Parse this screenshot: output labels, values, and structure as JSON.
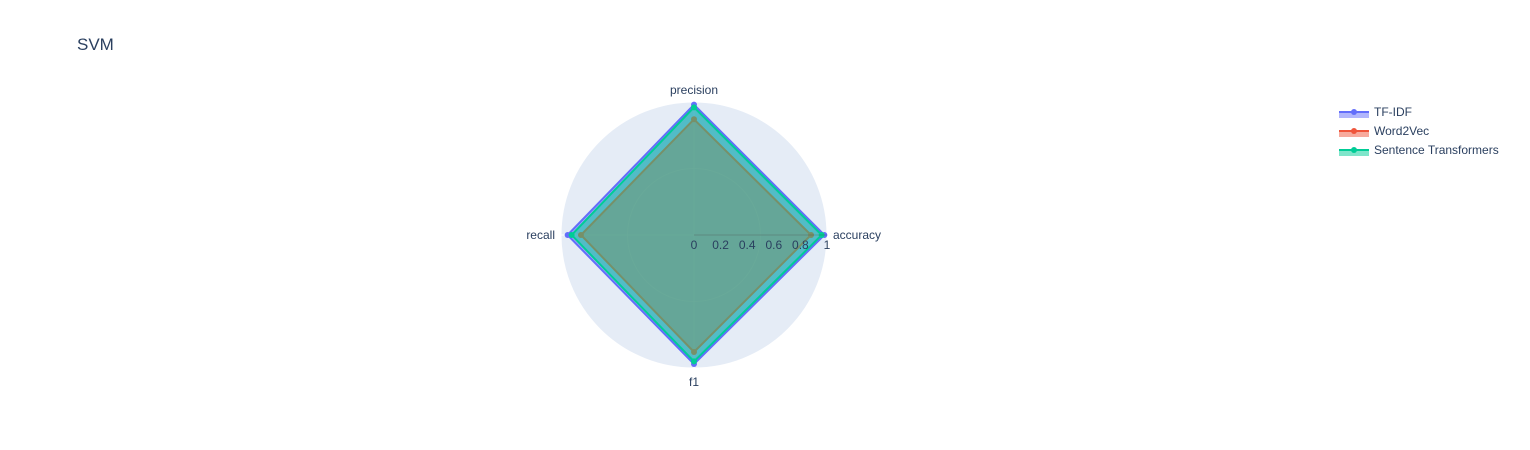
{
  "chart_data": {
    "type": "radar",
    "title": "SVM",
    "axes": [
      "accuracy",
      "precision",
      "recall",
      "f1"
    ],
    "radial_range": [
      0,
      1
    ],
    "radial_ticks": [
      "0",
      "0.2",
      "0.4",
      "0.6",
      "0.8",
      "1"
    ],
    "radial_tick_values": [
      0,
      0.2,
      0.4,
      0.6,
      0.8,
      1
    ],
    "gridlines": [
      0.5,
      1.0
    ],
    "legend_position": "top-right",
    "series": [
      {
        "name": "TF-IDF",
        "values": [
          0.98,
          0.98,
          0.95,
          0.97
        ],
        "color": "#636efa"
      },
      {
        "name": "Word2Vec",
        "values": [
          0.88,
          0.87,
          0.85,
          0.88
        ],
        "color": "#ef553b"
      },
      {
        "name": "Sentence Transformers",
        "values": [
          0.96,
          0.96,
          0.92,
          0.95
        ],
        "color": "#00cc96"
      }
    ],
    "polar_background": "#e5ecf6",
    "grid_color": "#ffffff"
  }
}
